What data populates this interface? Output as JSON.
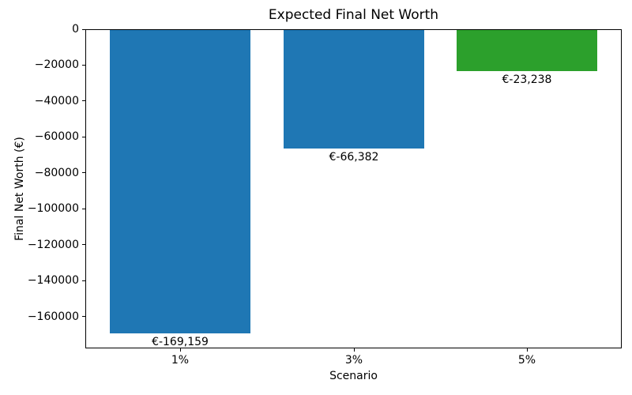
{
  "figure": {
    "background": "#ffffff",
    "spine_color": "#000000",
    "text_color": "#000000"
  },
  "chart_data": {
    "type": "bar",
    "title": "Expected Final Net Worth",
    "xlabel": "Scenario",
    "ylabel": "Final Net Worth (€)",
    "categories": [
      "1%",
      "3%",
      "5%"
    ],
    "values": [
      -169159,
      -66382,
      -23238
    ],
    "bar_labels": [
      "€-169,159",
      "€-66,382",
      "€-23,238"
    ],
    "bar_colors": [
      "#1f77b4",
      "#1f77b4",
      "#2ca02c"
    ],
    "ylim": [
      -177617,
      0
    ],
    "yticks": [
      0,
      -20000,
      -40000,
      -60000,
      -80000,
      -100000,
      -120000,
      -140000,
      -160000
    ],
    "ytick_labels": [
      "0",
      "−20000",
      "−40000",
      "−60000",
      "−80000",
      "−100000",
      "−120000",
      "−140000",
      "−160000"
    ],
    "grid": false,
    "legend": false
  }
}
